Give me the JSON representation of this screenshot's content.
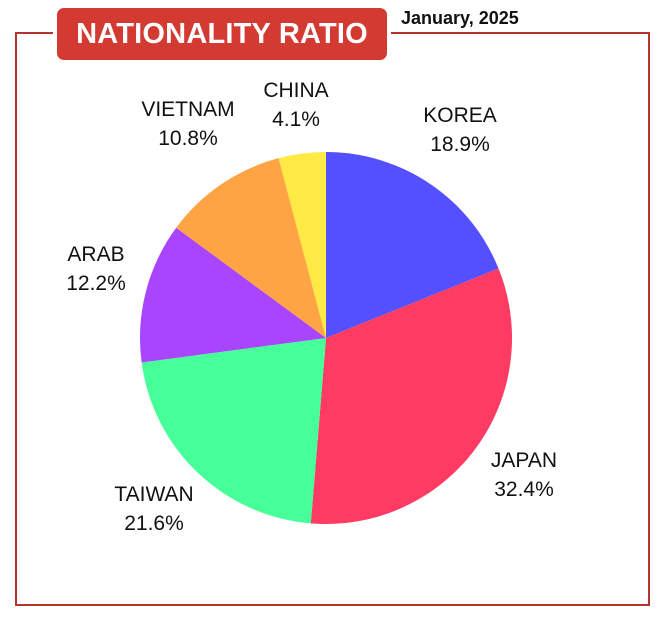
{
  "header": {
    "title": "NATIONALITY RATIO",
    "date": "January, 2025"
  },
  "colors": {
    "frame": "#b5342f",
    "title_bg": "#d33a32"
  },
  "chart_data": {
    "type": "pie",
    "title": "NATIONALITY RATIO",
    "subtitle": "January, 2025",
    "slices": [
      {
        "label": "KOREA",
        "value": 18.9,
        "display": "18.9%",
        "color": "#5550ff"
      },
      {
        "label": "JAPAN",
        "value": 32.4,
        "display": "32.4%",
        "color": "#ff3b63"
      },
      {
        "label": "TAIWAN",
        "value": 21.6,
        "display": "21.6%",
        "color": "#47ff98"
      },
      {
        "label": "ARAB",
        "value": 12.2,
        "display": "12.2%",
        "color": "#a945ff"
      },
      {
        "label": "VIETNAM",
        "value": 10.8,
        "display": "10.8%",
        "color": "#ffa444"
      },
      {
        "label": "CHINA",
        "value": 4.1,
        "display": "4.1%",
        "color": "#ffe944"
      }
    ],
    "start_angle_deg": 0,
    "direction": "clockwise"
  }
}
